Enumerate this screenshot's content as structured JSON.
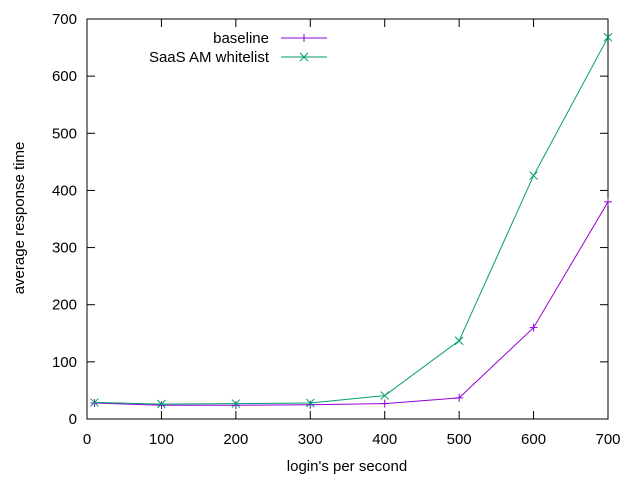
{
  "chart_data": {
    "type": "line",
    "title": "",
    "xlabel": "login's per second",
    "ylabel": "average response time",
    "xlim": [
      0,
      700
    ],
    "ylim": [
      0,
      700
    ],
    "xticks": [
      0,
      100,
      200,
      300,
      400,
      500,
      600,
      700
    ],
    "yticks": [
      0,
      100,
      200,
      300,
      400,
      500,
      600,
      700
    ],
    "grid": false,
    "legend_position": "top-left",
    "series": [
      {
        "name": "baseline",
        "color": "#9400d3",
        "marker": "plus",
        "x": [
          10,
          100,
          200,
          300,
          400,
          500,
          600,
          700
        ],
        "y": [
          28,
          24,
          24,
          25,
          27,
          37,
          160,
          380
        ]
      },
      {
        "name": "SaaS AM whitelist",
        "color": "#009e73",
        "marker": "cross",
        "x": [
          10,
          100,
          200,
          300,
          400,
          500,
          600,
          700
        ],
        "y": [
          29,
          26,
          27,
          28,
          41,
          137,
          426,
          668
        ]
      }
    ]
  }
}
